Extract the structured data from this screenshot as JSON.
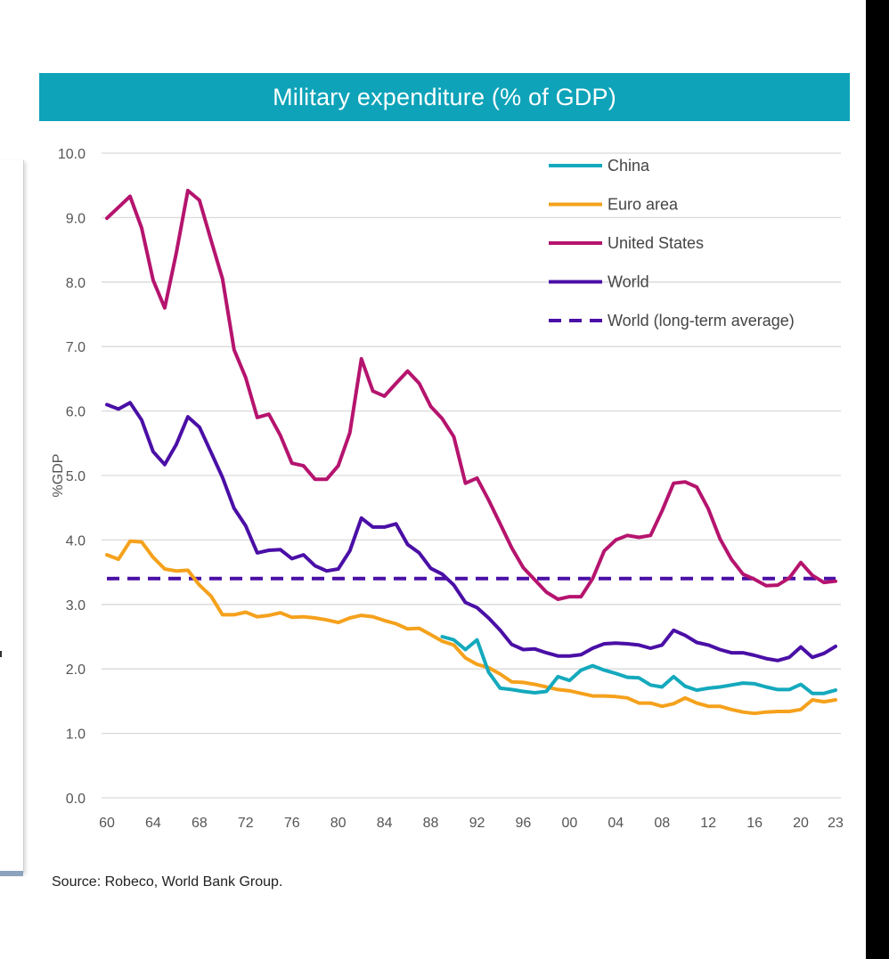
{
  "title": "Military expenditure (% of GDP)",
  "source": "Source: Robeco, World Bank Group.",
  "colors": {
    "title_bg": "#0ea3b9",
    "China": "#14a9bd",
    "Euro area": "#f5a11c",
    "United States": "#b5146e",
    "World": "#4a0fa6",
    "World (long-term average)": "#4a0fa6"
  },
  "chart_data": {
    "type": "line",
    "title": "Military expenditure (% of GDP)",
    "xlabel": "",
    "ylabel": "%GDP",
    "ylim": [
      0,
      10
    ],
    "yticks": [
      "0.0",
      "1.0",
      "2.0",
      "3.0",
      "4.0",
      "5.0",
      "6.0",
      "7.0",
      "8.0",
      "9.0",
      "10.0"
    ],
    "xlim": [
      1960,
      2023
    ],
    "xticks": [
      {
        "year": 1960,
        "label": "60"
      },
      {
        "year": 1964,
        "label": "64"
      },
      {
        "year": 1968,
        "label": "68"
      },
      {
        "year": 1972,
        "label": "72"
      },
      {
        "year": 1976,
        "label": "76"
      },
      {
        "year": 1980,
        "label": "80"
      },
      {
        "year": 1984,
        "label": "84"
      },
      {
        "year": 1988,
        "label": "88"
      },
      {
        "year": 1992,
        "label": "92"
      },
      {
        "year": 1996,
        "label": "96"
      },
      {
        "year": 2000,
        "label": "00"
      },
      {
        "year": 2004,
        "label": "04"
      },
      {
        "year": 2008,
        "label": "08"
      },
      {
        "year": 2012,
        "label": "12"
      },
      {
        "year": 2016,
        "label": "16"
      },
      {
        "year": 2020,
        "label": "20"
      },
      {
        "year": 2023,
        "label": "23"
      }
    ],
    "grid": true,
    "legend_position": "top-right",
    "series": [
      {
        "name": "China",
        "style": "solid",
        "x": [
          1989,
          1990,
          1991,
          1992,
          1993,
          1994,
          1995,
          1996,
          1997,
          1998,
          1999,
          2000,
          2001,
          2002,
          2003,
          2004,
          2005,
          2006,
          2007,
          2008,
          2009,
          2010,
          2011,
          2012,
          2013,
          2014,
          2015,
          2016,
          2017,
          2018,
          2019,
          2020,
          2021,
          2022,
          2023
        ],
        "y": [
          2.5,
          2.45,
          2.3,
          2.45,
          1.95,
          1.7,
          1.68,
          1.65,
          1.63,
          1.65,
          1.88,
          1.82,
          1.98,
          2.05,
          1.98,
          1.93,
          1.87,
          1.86,
          1.75,
          1.72,
          1.88,
          1.73,
          1.67,
          1.7,
          1.72,
          1.75,
          1.78,
          1.77,
          1.72,
          1.68,
          1.68,
          1.76,
          1.62,
          1.62,
          1.67
        ]
      },
      {
        "name": "Euro area",
        "style": "solid",
        "x": [
          1960,
          1961,
          1962,
          1963,
          1964,
          1965,
          1966,
          1967,
          1968,
          1969,
          1970,
          1971,
          1972,
          1973,
          1974,
          1975,
          1976,
          1977,
          1978,
          1979,
          1980,
          1981,
          1982,
          1983,
          1984,
          1985,
          1986,
          1987,
          1988,
          1989,
          1990,
          1991,
          1992,
          1993,
          1994,
          1995,
          1996,
          1997,
          1998,
          1999,
          2000,
          2001,
          2002,
          2003,
          2004,
          2005,
          2006,
          2007,
          2008,
          2009,
          2010,
          2011,
          2012,
          2013,
          2014,
          2015,
          2016,
          2017,
          2018,
          2019,
          2020,
          2021,
          2022,
          2023
        ],
        "y": [
          3.77,
          3.7,
          3.98,
          3.97,
          3.73,
          3.55,
          3.52,
          3.53,
          3.3,
          3.13,
          2.84,
          2.84,
          2.88,
          2.81,
          2.83,
          2.87,
          2.8,
          2.81,
          2.79,
          2.76,
          2.72,
          2.79,
          2.83,
          2.81,
          2.75,
          2.7,
          2.62,
          2.63,
          2.53,
          2.43,
          2.37,
          2.17,
          2.07,
          2.02,
          1.92,
          1.8,
          1.79,
          1.76,
          1.72,
          1.68,
          1.66,
          1.62,
          1.58,
          1.58,
          1.57,
          1.55,
          1.47,
          1.47,
          1.42,
          1.46,
          1.55,
          1.47,
          1.42,
          1.42,
          1.37,
          1.33,
          1.31,
          1.33,
          1.34,
          1.34,
          1.37,
          1.52,
          1.49,
          1.52
        ]
      },
      {
        "name": "United States",
        "style": "solid",
        "x": [
          1960,
          1961,
          1962,
          1963,
          1964,
          1965,
          1966,
          1967,
          1968,
          1969,
          1970,
          1971,
          1972,
          1973,
          1974,
          1975,
          1976,
          1977,
          1978,
          1979,
          1980,
          1981,
          1982,
          1983,
          1984,
          1985,
          1986,
          1987,
          1988,
          1989,
          1990,
          1991,
          1992,
          1993,
          1994,
          1995,
          1996,
          1997,
          1998,
          1999,
          2000,
          2001,
          2002,
          2003,
          2004,
          2005,
          2006,
          2007,
          2008,
          2009,
          2010,
          2011,
          2012,
          2013,
          2014,
          2015,
          2016,
          2017,
          2018,
          2019,
          2020,
          2021,
          2022,
          2023
        ],
        "y": [
          8.99,
          9.16,
          9.33,
          8.84,
          8.03,
          7.6,
          8.45,
          9.42,
          9.27,
          8.65,
          8.05,
          6.95,
          6.52,
          5.9,
          5.95,
          5.62,
          5.19,
          5.15,
          4.94,
          4.94,
          5.15,
          5.66,
          6.81,
          6.31,
          6.23,
          6.43,
          6.62,
          6.43,
          6.07,
          5.88,
          5.6,
          4.88,
          4.96,
          4.62,
          4.25,
          3.88,
          3.57,
          3.38,
          3.19,
          3.08,
          3.12,
          3.12,
          3.4,
          3.83,
          4.0,
          4.07,
          4.04,
          4.07,
          4.45,
          4.88,
          4.9,
          4.82,
          4.48,
          4.02,
          3.7,
          3.47,
          3.39,
          3.29,
          3.3,
          3.41,
          3.65,
          3.45,
          3.34,
          3.36
        ]
      },
      {
        "name": "World",
        "style": "solid",
        "x": [
          1960,
          1961,
          1962,
          1963,
          1964,
          1965,
          1966,
          1967,
          1968,
          1969,
          1970,
          1971,
          1972,
          1973,
          1974,
          1975,
          1976,
          1977,
          1978,
          1979,
          1980,
          1981,
          1982,
          1983,
          1984,
          1985,
          1986,
          1987,
          1988,
          1989,
          1990,
          1991,
          1992,
          1993,
          1994,
          1995,
          1996,
          1997,
          1998,
          1999,
          2000,
          2001,
          2002,
          2003,
          2004,
          2005,
          2006,
          2007,
          2008,
          2009,
          2010,
          2011,
          2012,
          2013,
          2014,
          2015,
          2016,
          2017,
          2018,
          2019,
          2020,
          2021,
          2022,
          2023
        ],
        "y": [
          6.1,
          6.03,
          6.13,
          5.86,
          5.37,
          5.17,
          5.48,
          5.91,
          5.75,
          5.36,
          4.97,
          4.49,
          4.22,
          3.8,
          3.84,
          3.85,
          3.71,
          3.77,
          3.6,
          3.52,
          3.55,
          3.83,
          4.34,
          4.2,
          4.2,
          4.25,
          3.93,
          3.8,
          3.56,
          3.47,
          3.3,
          3.03,
          2.95,
          2.79,
          2.6,
          2.38,
          2.3,
          2.31,
          2.25,
          2.2,
          2.2,
          2.22,
          2.32,
          2.39,
          2.4,
          2.39,
          2.37,
          2.32,
          2.37,
          2.6,
          2.52,
          2.41,
          2.37,
          2.3,
          2.25,
          2.25,
          2.21,
          2.16,
          2.13,
          2.18,
          2.34,
          2.18,
          2.24,
          2.35
        ]
      },
      {
        "name": "World (long-term average)",
        "style": "dashed",
        "x": [
          1960,
          2023
        ],
        "y": [
          3.4,
          3.4
        ]
      }
    ]
  }
}
